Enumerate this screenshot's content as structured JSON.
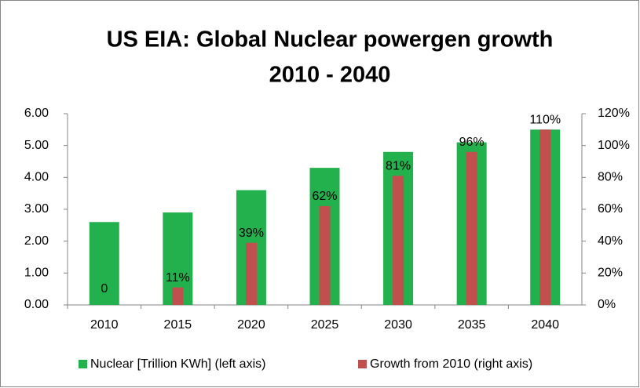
{
  "chart_data": {
    "type": "bar",
    "title": [
      "US EIA: Global Nuclear powergen growth",
      "2010 - 2040"
    ],
    "categories": [
      "2010",
      "2015",
      "2020",
      "2025",
      "2030",
      "2035",
      "2040"
    ],
    "series": [
      {
        "name": "Nuclear [Trillion KWh] (left axis)",
        "color": "#22b14c",
        "values": [
          2.6,
          2.9,
          3.6,
          4.3,
          4.8,
          5.1,
          5.5
        ]
      },
      {
        "name": "Growth from 2010 (right axis)",
        "color": "#c0504d",
        "axis": "y2",
        "values": [
          0,
          11,
          39,
          62,
          81,
          96,
          110
        ],
        "value_labels": [
          "0",
          "11%",
          "39%",
          "62%",
          "81%",
          "96%",
          "110%"
        ]
      }
    ],
    "ylim": [
      0,
      6
    ],
    "yticks": [
      {
        "value": 0,
        "label": "0.00"
      },
      {
        "value": 1,
        "label": "1.00"
      },
      {
        "value": 2,
        "label": "2.00"
      },
      {
        "value": 3,
        "label": "3.00"
      },
      {
        "value": 4,
        "label": "4.00"
      },
      {
        "value": 5,
        "label": "5.00"
      },
      {
        "value": 6,
        "label": "6.00"
      }
    ],
    "y2lim": [
      0,
      120
    ],
    "y2ticks": [
      {
        "value": 0,
        "label": "0%"
      },
      {
        "value": 20,
        "label": "20%"
      },
      {
        "value": 40,
        "label": "40%"
      },
      {
        "value": 60,
        "label": "60%"
      },
      {
        "value": 80,
        "label": "80%"
      },
      {
        "value": 100,
        "label": "100%"
      },
      {
        "value": 120,
        "label": "120%"
      }
    ],
    "grid": false,
    "legend": "bottom"
  }
}
